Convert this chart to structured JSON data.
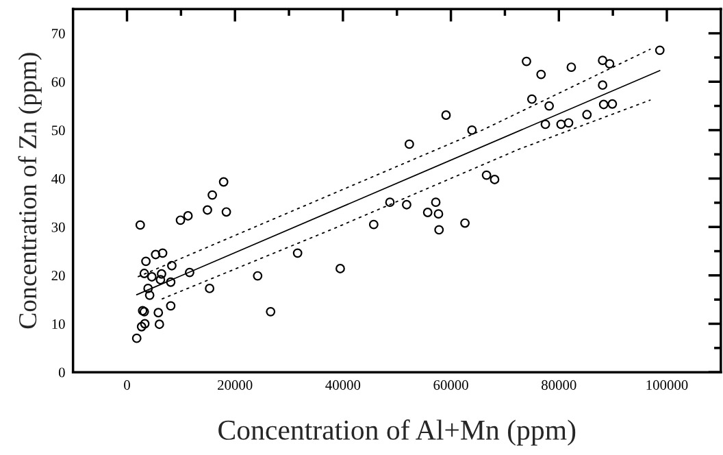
{
  "chart_data": {
    "type": "scatter",
    "xlabel": "Concentration of Al+Mn (ppm)",
    "ylabel": "Concentration of Zn (ppm)",
    "xlim": [
      -10000,
      110000
    ],
    "ylim": [
      0,
      75
    ],
    "xticks": [
      0,
      {
        "value": 10000,
        "label": null
      },
      20000,
      {
        "value": 30000,
        "label": null
      },
      40000,
      {
        "value": 50000,
        "label": null
      },
      60000,
      {
        "value": 70000,
        "label": null
      },
      80000,
      {
        "value": 90000,
        "label": null
      },
      100000
    ],
    "yticks": [
      0,
      {
        "value": 5,
        "label": null
      },
      10,
      {
        "value": 15,
        "label": null
      },
      20,
      {
        "value": 25,
        "label": null
      },
      30,
      {
        "value": 35,
        "label": null
      },
      40,
      {
        "value": 45,
        "label": null
      },
      50,
      {
        "value": 55,
        "label": null
      },
      60,
      {
        "value": 65,
        "label": null
      },
      70
    ],
    "grid": false,
    "legend": false,
    "marker": "circle",
    "series": [
      {
        "color": "#000000",
        "x": [
          2450,
          9900,
          11300,
          14900,
          18400,
          17900,
          15800,
          45700,
          31600,
          39500,
          24200,
          26600,
          15300,
          11600,
          8300,
          6600,
          5300,
          3500,
          3200,
          4600,
          6400,
          6200,
          8100,
          3900,
          4200,
          8100,
          2900,
          3200,
          5800,
          3300,
          2700,
          6000,
          1800,
          48700,
          51800,
          57200,
          55700,
          57700,
          62600,
          57800,
          52300,
          59100,
          63900,
          66600,
          68100,
          74000,
          76700,
          82300,
          88100,
          89400,
          98700,
          88100,
          75000,
          78200,
          88300,
          89900,
          85200,
          77500,
          80400,
          81800
        ],
        "values": [
          30.4,
          31.4,
          32.3,
          33.5,
          33.1,
          39.3,
          36.6,
          30.5,
          24.6,
          21.4,
          19.9,
          12.5,
          17.3,
          20.6,
          22.0,
          24.6,
          24.3,
          22.9,
          20.4,
          19.7,
          20.3,
          19.1,
          18.6,
          17.3,
          15.9,
          13.7,
          12.7,
          12.5,
          12.3,
          10.0,
          9.4,
          9.9,
          7.0,
          35.1,
          34.6,
          35.1,
          33.0,
          32.7,
          30.8,
          29.4,
          47.1,
          53.1,
          50.0,
          40.7,
          39.8,
          64.2,
          61.5,
          63.0,
          64.4,
          63.7,
          66.5,
          59.3,
          56.4,
          55.0,
          55.3,
          55.4,
          53.2,
          51.2,
          51.2,
          51.5
        ]
      },
      {
        "type": "line",
        "color": "#000000",
        "line_style": "solid",
        "marker": "none",
        "x": [
          1800,
          98700
        ],
        "values": [
          16.0,
          62.3
        ]
      },
      {
        "type": "line",
        "color": "#000000",
        "line_style": "dotted",
        "marker": "none",
        "x": [
          1800,
          66000,
          96900
        ],
        "values": [
          19.6,
          50.1,
          66.7
        ]
      },
      {
        "type": "line",
        "color": "#000000",
        "line_style": "dotted",
        "marker": "none",
        "x": [
          6200,
          38600,
          72700,
          96900
        ],
        "values": [
          15.0,
          29.8,
          46.1,
          56.2
        ]
      }
    ]
  }
}
